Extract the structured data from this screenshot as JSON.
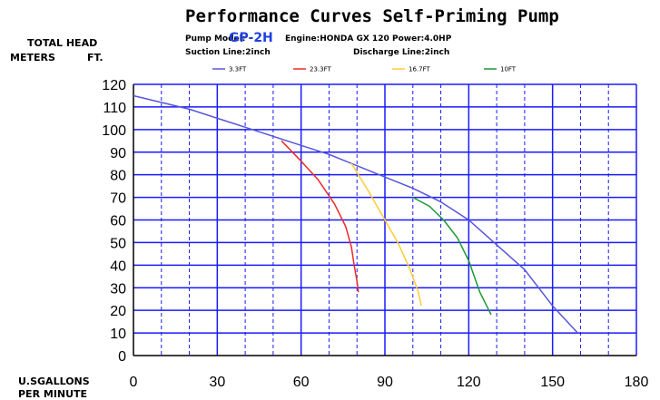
{
  "header": {
    "title": "Performance Curves Self-Priming Pump",
    "model_label": "Pump Model:",
    "model_value": "GP-2H",
    "engine": "Engine:HONDA GX 120",
    "power": "Power:4.0HP",
    "suction": "Suction Line:2inch",
    "discharge": "Discharge Line:2inch"
  },
  "axis_labels": {
    "total_head": "TOTAL HEAD",
    "meters": "METERS",
    "ft": "FT.",
    "flow_line1": "U.SGALLONS",
    "flow_line2": "PER MINUTE"
  },
  "colors": {
    "grid": "#1a1aff",
    "axis": "#000000"
  },
  "chart_data": {
    "type": "line",
    "title": "Performance Curves Self-Priming Pump",
    "xlim": [
      0,
      180
    ],
    "ylim": [
      0,
      120
    ],
    "xticks": [
      0,
      30,
      60,
      90,
      120,
      150,
      180
    ],
    "yticks": [
      0,
      10,
      20,
      30,
      40,
      50,
      60,
      70,
      80,
      90,
      100,
      110,
      120
    ],
    "grid": true,
    "legend_position": "top",
    "series": [
      {
        "name": "3.3FT",
        "color": "#5555dd",
        "x": [
          0,
          20,
          40,
          50,
          60,
          70,
          80,
          90,
          100,
          110,
          120,
          130,
          140,
          150,
          159
        ],
        "y": [
          115,
          109,
          101,
          97,
          93,
          89,
          84,
          79,
          74,
          68,
          60,
          49,
          38,
          22,
          10
        ]
      },
      {
        "name": "23.3FT",
        "color": "#ee2a2a",
        "x": [
          53,
          60,
          66,
          72,
          76,
          78,
          79,
          80,
          80.5
        ],
        "y": [
          95,
          86,
          78,
          67,
          57,
          48,
          40,
          33,
          28
        ]
      },
      {
        "name": "16.7FT",
        "color": "#ffcc33",
        "x": [
          78,
          84,
          90,
          95,
          99,
          102,
          103
        ],
        "y": [
          85,
          73,
          60,
          49,
          38,
          28,
          22
        ]
      },
      {
        "name": "10FT",
        "color": "#1a9933",
        "x": [
          100,
          106,
          111,
          116,
          120,
          124,
          128
        ],
        "y": [
          70,
          66,
          60,
          52,
          42,
          28,
          18
        ]
      }
    ]
  }
}
